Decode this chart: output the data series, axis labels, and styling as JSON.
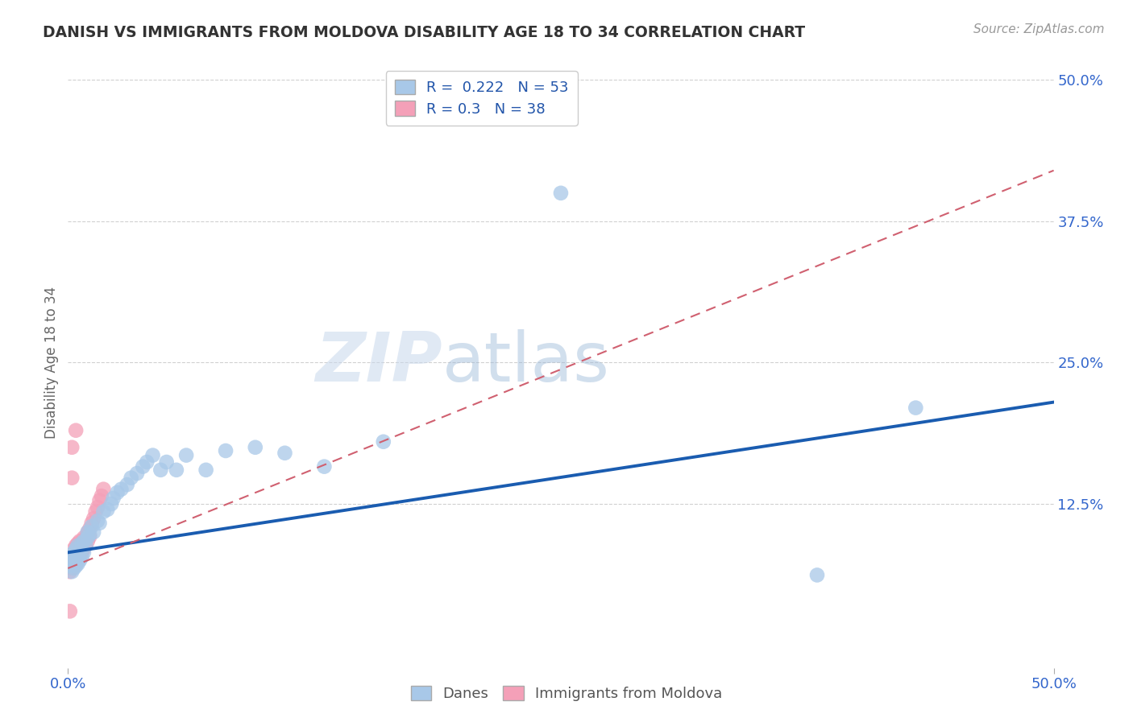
{
  "title": "DANISH VS IMMIGRANTS FROM MOLDOVA DISABILITY AGE 18 TO 34 CORRELATION CHART",
  "source": "Source: ZipAtlas.com",
  "ylabel": "Disability Age 18 to 34",
  "xlim": [
    0.0,
    0.5
  ],
  "ylim": [
    -0.02,
    0.52
  ],
  "watermark_zip": "ZIP",
  "watermark_atlas": "atlas",
  "danes_R": 0.222,
  "danes_N": 53,
  "moldova_R": 0.3,
  "moldova_N": 38,
  "danes_color": "#a8c8e8",
  "moldova_color": "#f4a0b8",
  "danes_line_color": "#1a5cb0",
  "moldova_line_color": "#d06070",
  "legend_text_color": "#2255aa",
  "background_color": "#ffffff",
  "grid_color": "#cccccc",
  "axis_color": "#3366cc",
  "danes_x": [
    0.001,
    0.001,
    0.002,
    0.002,
    0.002,
    0.003,
    0.003,
    0.003,
    0.004,
    0.004,
    0.004,
    0.005,
    0.005,
    0.005,
    0.006,
    0.006,
    0.007,
    0.007,
    0.008,
    0.008,
    0.009,
    0.01,
    0.01,
    0.011,
    0.012,
    0.013,
    0.015,
    0.016,
    0.018,
    0.02,
    0.022,
    0.023,
    0.025,
    0.027,
    0.03,
    0.032,
    0.035,
    0.038,
    0.04,
    0.043,
    0.047,
    0.05,
    0.055,
    0.06,
    0.07,
    0.08,
    0.095,
    0.11,
    0.13,
    0.16,
    0.25,
    0.38,
    0.43
  ],
  "danes_y": [
    0.07,
    0.075,
    0.065,
    0.072,
    0.08,
    0.068,
    0.075,
    0.082,
    0.07,
    0.078,
    0.085,
    0.072,
    0.08,
    0.088,
    0.075,
    0.083,
    0.078,
    0.09,
    0.082,
    0.092,
    0.088,
    0.095,
    0.1,
    0.098,
    0.105,
    0.1,
    0.11,
    0.108,
    0.118,
    0.12,
    0.125,
    0.13,
    0.135,
    0.138,
    0.142,
    0.148,
    0.152,
    0.158,
    0.162,
    0.168,
    0.155,
    0.162,
    0.155,
    0.168,
    0.155,
    0.172,
    0.175,
    0.17,
    0.158,
    0.18,
    0.4,
    0.062,
    0.21
  ],
  "moldova_x": [
    0.001,
    0.001,
    0.002,
    0.002,
    0.002,
    0.003,
    0.003,
    0.003,
    0.004,
    0.004,
    0.004,
    0.005,
    0.005,
    0.005,
    0.006,
    0.006,
    0.006,
    0.007,
    0.007,
    0.008,
    0.008,
    0.009,
    0.009,
    0.01,
    0.01,
    0.011,
    0.011,
    0.012,
    0.013,
    0.014,
    0.015,
    0.016,
    0.017,
    0.018,
    0.002,
    0.004,
    0.002,
    0.001
  ],
  "moldova_y": [
    0.065,
    0.072,
    0.068,
    0.075,
    0.08,
    0.07,
    0.078,
    0.085,
    0.072,
    0.08,
    0.088,
    0.075,
    0.082,
    0.09,
    0.078,
    0.085,
    0.092,
    0.082,
    0.09,
    0.085,
    0.095,
    0.088,
    0.095,
    0.092,
    0.1,
    0.096,
    0.103,
    0.108,
    0.112,
    0.118,
    0.122,
    0.128,
    0.132,
    0.138,
    0.175,
    0.19,
    0.148,
    0.03
  ],
  "danes_line_x": [
    0.0,
    0.5
  ],
  "danes_line_y": [
    0.082,
    0.215
  ],
  "moldova_line_x": [
    0.0,
    0.5
  ],
  "moldova_line_y": [
    0.068,
    0.42
  ]
}
